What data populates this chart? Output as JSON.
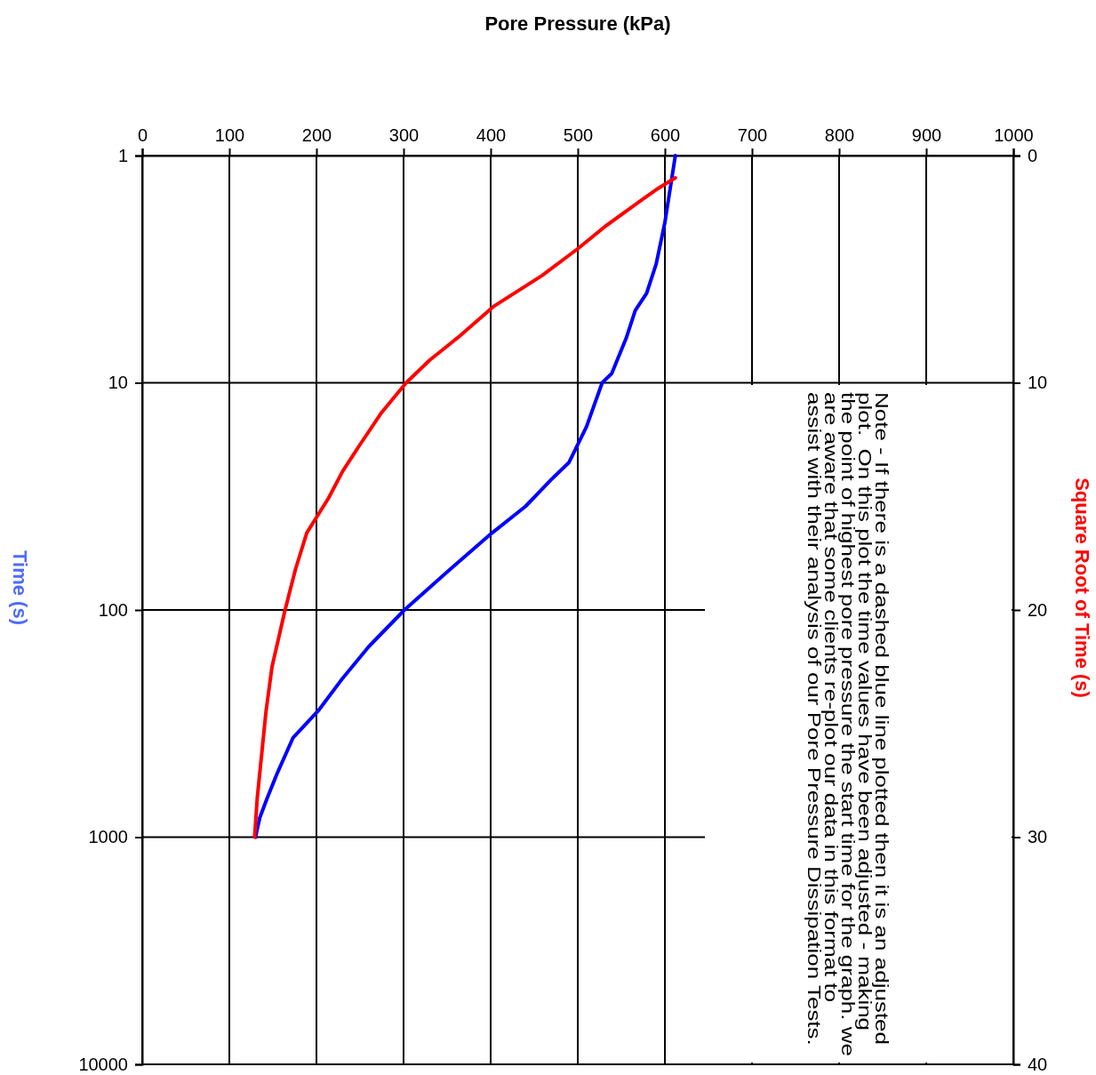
{
  "chart_data": {
    "type": "line",
    "xlabel": "Pore Pressure (kPa)",
    "ylabel": "Time (s)",
    "y2label": "Square Root of Time (s)",
    "xlim": [
      0,
      1000
    ],
    "xticks": [
      0,
      100,
      200,
      300,
      400,
      500,
      600,
      700,
      800,
      900,
      1000
    ],
    "ylim": [
      10000,
      1
    ],
    "yticks": [
      1,
      10,
      100,
      1000,
      10000
    ],
    "log": "y",
    "y2lim": [
      40,
      0
    ],
    "y2ticks": [
      0,
      10,
      20,
      30,
      40
    ],
    "grid": true,
    "line_style": "solid",
    "marker": "none",
    "series": [
      {
        "color": "#0000ff",
        "x": [
          612,
          600,
          590,
          579,
          566,
          556,
          539,
          528,
          510,
          490,
          469,
          440,
          401,
          350,
          301,
          260,
          230,
          202,
          173,
          155,
          143,
          135,
          130
        ],
        "values": [
          1,
          1.97,
          3,
          4.04,
          4.8,
          6.3,
          9.1,
          10,
          15.6,
          22.4,
          26.8,
          35,
          46,
          68,
          100,
          145,
          200,
          278,
          366,
          523,
          680,
          820,
          1000
        ]
      },
      {
        "color": "#ff0000",
        "axis": "y2",
        "x": [
          612,
          590,
          573,
          531,
          500,
          459,
          403,
          362,
          330,
          303,
          275,
          250,
          230,
          214,
          189,
          176,
          164,
          149,
          142,
          137,
          132,
          129
        ],
        "values": [
          0.98,
          1.5,
          1.96,
          3.13,
          4.1,
          5.28,
          6.65,
          8.02,
          9.0,
          10,
          11.3,
          12.72,
          13.9,
          15.07,
          16.6,
          18.2,
          20,
          22.5,
          24.5,
          26.4,
          28.3,
          30
        ]
      }
    ],
    "annotations": [
      "Note - If there is a dashed blue line plotted then it is an adjusted plot.  On this plot the time values have been adjusted - making the point of highest pore pressure the start time for the graph. we are aware that some clients re-plot our data in this format to assist with their analysis of our Pore Pressure Dissipation Tests."
    ]
  }
}
